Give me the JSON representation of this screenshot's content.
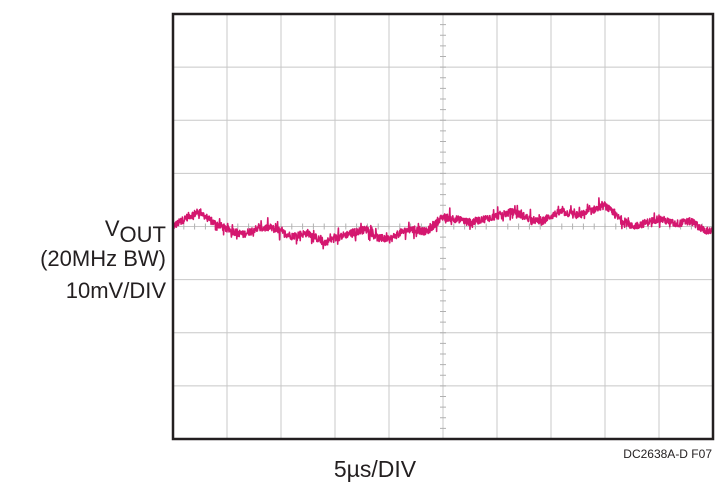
{
  "chart_data": {
    "type": "line",
    "title": "",
    "ylabel_parts": {
      "main": "V",
      "sub": "OUT"
    },
    "ylabel_line2": "(20MHz BW)",
    "ylabel_line3": "10mV/DIV",
    "xlabel": "5µs/DIV",
    "figure_id": "DC2638A-D F07",
    "grid": true,
    "divisions": {
      "x": 10,
      "y": 8
    },
    "xlim": [
      0,
      10
    ],
    "ylim": [
      -4,
      4
    ],
    "trace_color": "#d4176f",
    "series": [
      {
        "name": "",
        "x": [
          0,
          0.3,
          0.5,
          0.7,
          1.0,
          1.3,
          1.5,
          1.8,
          2.0,
          2.2,
          2.5,
          2.8,
          3.0,
          3.3,
          3.6,
          3.8,
          4.0,
          4.2,
          4.4,
          4.7,
          5.0,
          5.2,
          5.5,
          5.8,
          6.0,
          6.3,
          6.6,
          6.8,
          7.0,
          7.2,
          7.5,
          7.8,
          8.0,
          8.2,
          8.5,
          8.7,
          9.0,
          9.3,
          9.6,
          9.8,
          10.0
        ],
        "y": [
          0.0,
          0.2,
          0.28,
          0.1,
          -0.05,
          -0.15,
          -0.05,
          -0.02,
          -0.1,
          -0.18,
          -0.12,
          -0.3,
          -0.22,
          -0.12,
          -0.05,
          -0.22,
          -0.25,
          -0.12,
          -0.05,
          -0.1,
          0.18,
          0.15,
          0.08,
          0.15,
          0.2,
          0.28,
          0.15,
          0.08,
          0.2,
          0.28,
          0.2,
          0.32,
          0.4,
          0.2,
          0.0,
          0.05,
          0.15,
          0.05,
          0.1,
          -0.05,
          -0.1
        ]
      }
    ]
  }
}
